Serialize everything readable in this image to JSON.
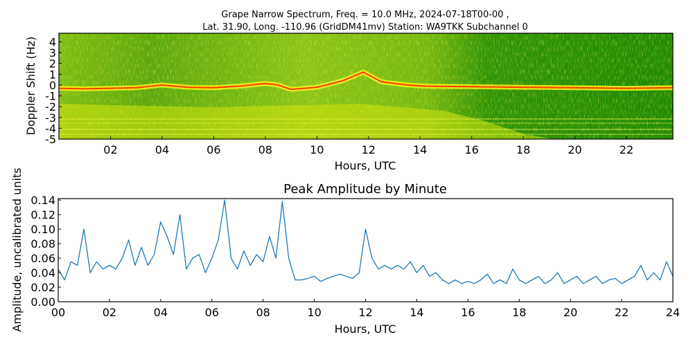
{
  "chart_data": [
    {
      "type": "heatmap",
      "title": "Grape Narrow Spectrum, Freq. = 10.0 MHz, 2024-07-18T00-00 ,",
      "subtitle": "Lat.  31.90, Long. -110.96 (GridDM41mv) Station: WA9TKK Subchannel 0",
      "xlabel": "Hours, UTC",
      "ylabel": "Doppler Shift (Hz)",
      "x_ticks": [
        "02",
        "04",
        "06",
        "08",
        "10",
        "12",
        "14",
        "16",
        "18",
        "20",
        "22"
      ],
      "x_tick_values": [
        2,
        4,
        6,
        8,
        10,
        12,
        14,
        16,
        18,
        20,
        22
      ],
      "y_ticks": [
        "4",
        "3",
        "2",
        "1",
        "0",
        "-1",
        "-2",
        "-3",
        "-4",
        "-5"
      ],
      "y_tick_values": [
        4,
        3,
        2,
        1,
        0,
        -1,
        -2,
        -3,
        -4,
        -5
      ],
      "xlim": [
        0,
        23.8
      ],
      "ylim": [
        -5,
        4.8
      ],
      "colors": [
        "#1e8a05",
        "#3c9d0a",
        "#8dc418",
        "#d2e40c",
        "#ecef0a",
        "#ff3500"
      ],
      "carrier_trace_hz": [
        [
          0.0,
          -0.3
        ],
        [
          1.0,
          -0.35
        ],
        [
          2.0,
          -0.3
        ],
        [
          3.0,
          -0.25
        ],
        [
          4.0,
          0.0
        ],
        [
          5.0,
          -0.2
        ],
        [
          6.0,
          -0.25
        ],
        [
          7.0,
          -0.1
        ],
        [
          8.0,
          0.15
        ],
        [
          8.5,
          0.0
        ],
        [
          9.0,
          -0.4
        ],
        [
          10.0,
          -0.2
        ],
        [
          11.0,
          0.4
        ],
        [
          11.8,
          1.2
        ],
        [
          12.5,
          0.3
        ],
        [
          13.5,
          0.0
        ],
        [
          14.2,
          -0.1
        ],
        [
          18.0,
          -0.2
        ],
        [
          20.0,
          -0.25
        ],
        [
          22.0,
          -0.3
        ],
        [
          23.8,
          -0.25
        ]
      ]
    },
    {
      "type": "line",
      "title": "Peak Amplitude by Minute",
      "xlabel": "Hours, UTC",
      "ylabel": "Amplitude, uncalibrated units",
      "x_ticks": [
        "00",
        "02",
        "04",
        "06",
        "08",
        "10",
        "12",
        "14",
        "16",
        "18",
        "20",
        "22",
        "24"
      ],
      "x_tick_values": [
        0,
        2,
        4,
        6,
        8,
        10,
        12,
        14,
        16,
        18,
        20,
        22,
        24
      ],
      "y_ticks": [
        "0.00",
        "0.02",
        "0.04",
        "0.06",
        "0.08",
        "0.10",
        "0.12",
        "0.14"
      ],
      "y_tick_values": [
        0,
        0.02,
        0.04,
        0.06,
        0.08,
        0.1,
        0.12,
        0.14
      ],
      "xlim": [
        0,
        24
      ],
      "ylim": [
        0,
        0.142
      ],
      "series_color": "#1f77b4",
      "x": [
        0.0,
        0.25,
        0.5,
        0.75,
        1.0,
        1.25,
        1.5,
        1.75,
        2.0,
        2.25,
        2.5,
        2.75,
        3.0,
        3.25,
        3.5,
        3.75,
        4.0,
        4.25,
        4.5,
        4.75,
        5.0,
        5.25,
        5.5,
        5.75,
        6.0,
        6.25,
        6.5,
        6.75,
        7.0,
        7.25,
        7.5,
        7.75,
        8.0,
        8.25,
        8.5,
        8.75,
        9.0,
        9.25,
        9.5,
        9.75,
        10.0,
        10.25,
        10.5,
        10.75,
        11.0,
        11.25,
        11.5,
        11.75,
        12.0,
        12.25,
        12.5,
        12.75,
        13.0,
        13.25,
        13.5,
        13.75,
        14.0,
        14.25,
        14.5,
        14.75,
        15.0,
        15.25,
        15.5,
        15.75,
        16.0,
        16.25,
        16.5,
        16.75,
        17.0,
        17.25,
        17.5,
        17.75,
        18.0,
        18.25,
        18.5,
        18.75,
        19.0,
        19.25,
        19.5,
        19.75,
        20.0,
        20.25,
        20.5,
        20.75,
        21.0,
        21.25,
        21.5,
        21.75,
        22.0,
        22.25,
        22.5,
        22.75,
        23.0,
        23.25,
        23.5,
        23.75,
        24.0
      ],
      "y": [
        0.045,
        0.03,
        0.055,
        0.05,
        0.1,
        0.04,
        0.055,
        0.045,
        0.05,
        0.045,
        0.06,
        0.085,
        0.05,
        0.075,
        0.05,
        0.065,
        0.11,
        0.09,
        0.065,
        0.12,
        0.045,
        0.06,
        0.065,
        0.04,
        0.06,
        0.085,
        0.14,
        0.06,
        0.045,
        0.07,
        0.05,
        0.065,
        0.055,
        0.09,
        0.06,
        0.138,
        0.06,
        0.03,
        0.03,
        0.032,
        0.035,
        0.028,
        0.032,
        0.035,
        0.038,
        0.035,
        0.032,
        0.04,
        0.1,
        0.06,
        0.045,
        0.05,
        0.045,
        0.05,
        0.045,
        0.055,
        0.04,
        0.05,
        0.035,
        0.04,
        0.03,
        0.025,
        0.03,
        0.025,
        0.028,
        0.025,
        0.03,
        0.038,
        0.025,
        0.03,
        0.025,
        0.045,
        0.03,
        0.025,
        0.03,
        0.035,
        0.025,
        0.03,
        0.04,
        0.025,
        0.03,
        0.035,
        0.025,
        0.03,
        0.035,
        0.025,
        0.03,
        0.032,
        0.025,
        0.03,
        0.035,
        0.05,
        0.03,
        0.04,
        0.03,
        0.055,
        0.035
      ]
    }
  ]
}
